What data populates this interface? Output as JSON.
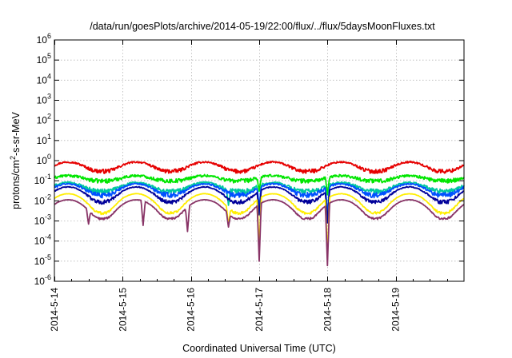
{
  "chart_data": {
    "type": "line",
    "title": "/data/run/goesPlots/archive/2014-05-19/22:00/flux/../flux/5daysMoonFluxes.txt",
    "xlabel": "Coordinated Universal Time (UTC)",
    "ylabel": {
      "base": "protons/cm",
      "sup": "2",
      "rest": "-s-sr-MeV"
    },
    "y_scale": "log",
    "ylim": [
      1e-06,
      1000000.0
    ],
    "x_range_days": [
      "2014-05-14",
      "2014-05-20"
    ],
    "y_ticks": [
      {
        "exp": -6,
        "base": "10",
        "sup": "-6"
      },
      {
        "exp": -5,
        "base": "10",
        "sup": "-5"
      },
      {
        "exp": -4,
        "base": "10",
        "sup": "-4"
      },
      {
        "exp": -3,
        "base": "10",
        "sup": "-3"
      },
      {
        "exp": -2,
        "base": "10",
        "sup": "-2"
      },
      {
        "exp": -1,
        "base": "10",
        "sup": "-1"
      },
      {
        "exp": 0,
        "base": "10",
        "sup": "0"
      },
      {
        "exp": 1,
        "base": "10",
        "sup": "1"
      },
      {
        "exp": 2,
        "base": "10",
        "sup": "2"
      },
      {
        "exp": 3,
        "base": "10",
        "sup": "3"
      },
      {
        "exp": 4,
        "base": "10",
        "sup": "4"
      },
      {
        "exp": 5,
        "base": "10",
        "sup": "5"
      },
      {
        "exp": 6,
        "base": "10",
        "sup": "6"
      }
    ],
    "x_ticks": [
      {
        "label": "2014-5-14",
        "day": 0
      },
      {
        "label": "2014-5-15",
        "day": 1
      },
      {
        "label": "2014-5-16",
        "day": 2
      },
      {
        "label": "2014-5-17",
        "day": 3
      },
      {
        "label": "2014-5-18",
        "day": 4
      },
      {
        "label": "2014-5-19",
        "day": 5
      }
    ],
    "grid": true,
    "legend": "none",
    "series": [
      {
        "color": "#e60000",
        "base": 0.3,
        "amp": 0.55,
        "noise": 0.12,
        "phase": 0.3,
        "dips": []
      },
      {
        "color": "#00e600",
        "base": 0.1,
        "amp": 0.08,
        "noise": 0.12,
        "phase": 0.3,
        "dips": [
          [
            3.0,
            0.03
          ],
          [
            4.0,
            0.02
          ]
        ]
      },
      {
        "color": "#00c8a0",
        "base": 0.03,
        "amp": 0.05,
        "noise": 0.15,
        "phase": 0.3,
        "dips": [
          [
            2.55,
            0.006
          ],
          [
            3.0,
            0.003
          ],
          [
            4.0,
            0.0015
          ]
        ]
      },
      {
        "color": "#0050ff",
        "base": 0.02,
        "amp": 0.05,
        "noise": 0.15,
        "phase": 0.3,
        "dips": [
          [
            3.0,
            0.004
          ],
          [
            4.0,
            0.002
          ]
        ]
      },
      {
        "color": "#00009a",
        "base": 0.009,
        "amp": 0.04,
        "noise": 0.12,
        "phase": 0.3,
        "dips": [
          [
            3.0,
            0.002
          ],
          [
            4.0,
            0.0008
          ]
        ]
      },
      {
        "color": "#ffee00",
        "base": 0.0025,
        "amp": 0.02,
        "noise": 0.08,
        "phase": 0.3,
        "dips": [
          [
            2.55,
            0.0006
          ],
          [
            3.0,
            5e-05
          ],
          [
            4.0,
            1.5e-05
          ]
        ]
      },
      {
        "color": "#883366",
        "base": 0.0013,
        "amp": 0.01,
        "noise": 0.06,
        "phase": 0.3,
        "dips": [
          [
            0.5,
            0.0007
          ],
          [
            1.3,
            0.0006
          ],
          [
            1.95,
            0.0003
          ],
          [
            2.55,
            0.0005
          ],
          [
            3.0,
            1e-05
          ],
          [
            4.0,
            6e-06
          ]
        ]
      }
    ]
  }
}
